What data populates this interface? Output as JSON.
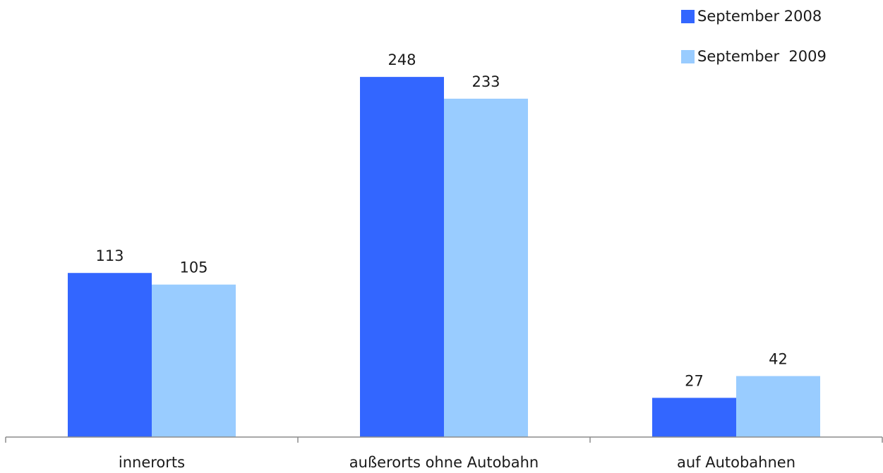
{
  "chart_data": {
    "type": "bar",
    "categories": [
      "innerorts",
      "außerorts ohne Autobahn",
      "auf Autobahnen"
    ],
    "series": [
      {
        "name": "September 2008",
        "values": [
          113,
          248,
          27
        ],
        "color": "#3366ff"
      },
      {
        "name": "September  2009",
        "values": [
          105,
          233,
          42
        ],
        "color": "#99ccff"
      }
    ],
    "title": "",
    "xlabel": "",
    "ylabel": "",
    "ylim": [
      0,
      280
    ],
    "grid": false,
    "legend_position": "top-right",
    "data_labels": true
  }
}
